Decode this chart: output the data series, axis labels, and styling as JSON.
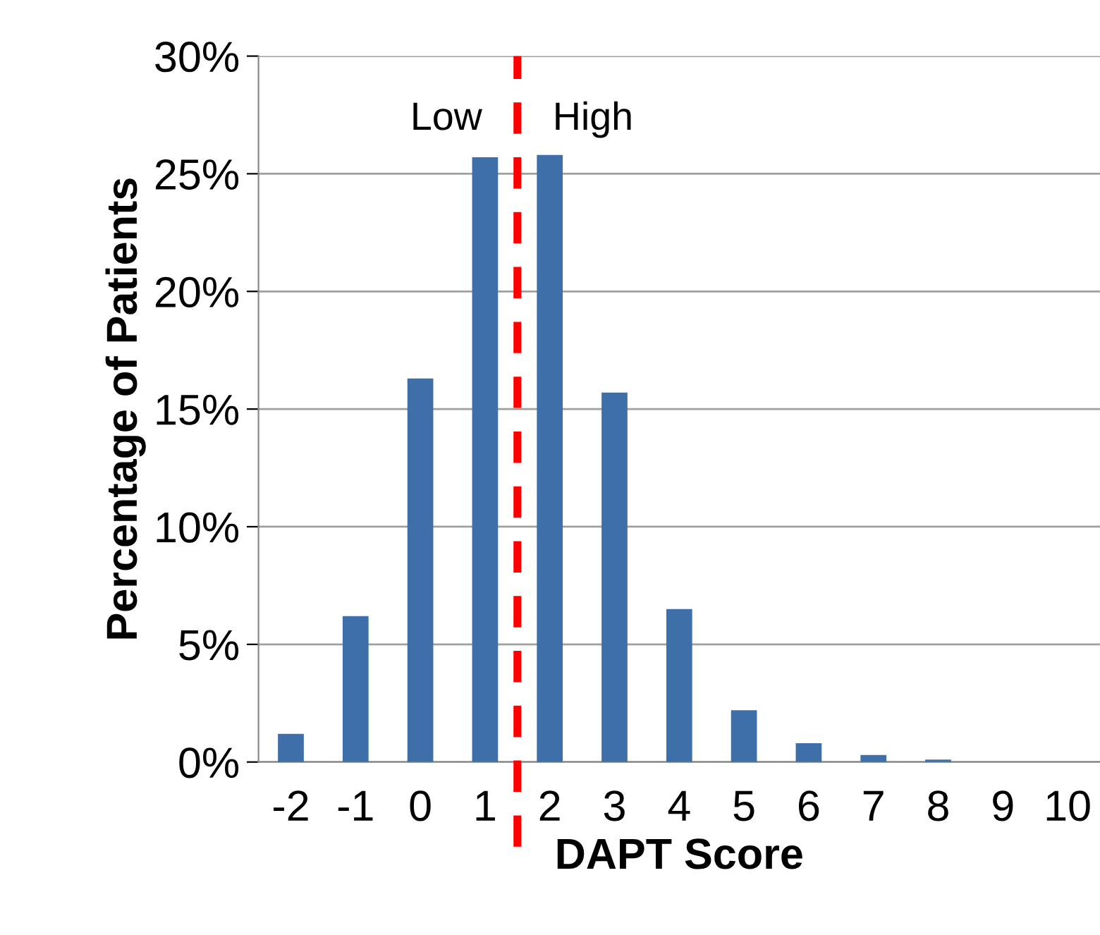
{
  "chart_data": {
    "type": "bar",
    "xlabel": "DAPT Score",
    "ylabel": "Percentage of Patients",
    "x": [
      -2,
      -1,
      0,
      1,
      2,
      3,
      4,
      5,
      6,
      7,
      8,
      9,
      10
    ],
    "values": [
      1.2,
      6.2,
      16.3,
      25.7,
      25.8,
      15.7,
      6.5,
      2.2,
      0.8,
      0.3,
      0.1,
      0,
      0
    ],
    "color": "#3f6fa8",
    "xlim": [
      -2.5,
      10.5
    ],
    "xticks": [
      -2,
      -1,
      0,
      1,
      2,
      3,
      4,
      5,
      6,
      7,
      8,
      9,
      10
    ],
    "ylim": [
      0,
      30
    ],
    "yticks": [
      {
        "value": 0,
        "label": "0%"
      },
      {
        "value": 5,
        "label": "5%"
      },
      {
        "value": 10,
        "label": "10%"
      },
      {
        "value": 15,
        "label": "15%"
      },
      {
        "value": 20,
        "label": "20%"
      },
      {
        "value": 25,
        "label": "25%"
      },
      {
        "value": 30,
        "label": "30%"
      }
    ],
    "grid": "y",
    "ref_lines": [
      {
        "axis": "x",
        "value": 1.5,
        "color": "#ff0000",
        "line_style": "dashed"
      }
    ],
    "annotations": [
      "Low",
      "High"
    ]
  }
}
